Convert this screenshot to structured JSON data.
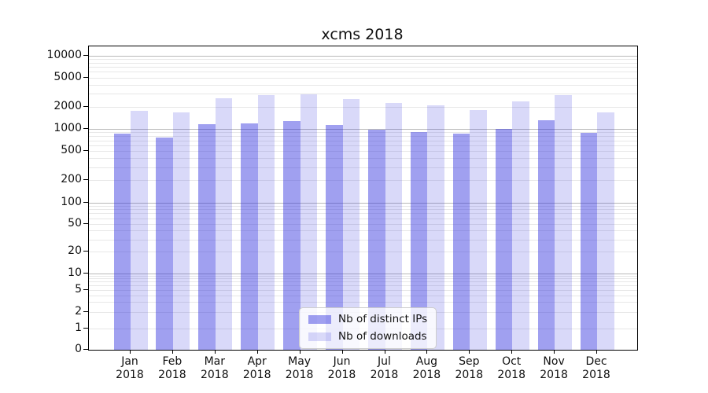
{
  "figure_title": "xcms 2018",
  "chart_data": {
    "type": "bar",
    "title": "xcms 2018",
    "categories": [
      "Jan",
      "Feb",
      "Mar",
      "Apr",
      "May",
      "Jun",
      "Jul",
      "Aug",
      "Sep",
      "Oct",
      "Nov",
      "Dec"
    ],
    "x_year": "2018",
    "series": [
      {
        "name": "Nb of distinct IPs",
        "color": "#2c2cde",
        "alpha": 0.45,
        "values": [
          860,
          760,
          1160,
          1190,
          1280,
          1130,
          980,
          900,
          860,
          1010,
          1310,
          880
        ]
      },
      {
        "name": "Nb of downloads",
        "color": "#2c2cde",
        "alpha": 0.18,
        "values": [
          1780,
          1690,
          2620,
          2880,
          2960,
          2550,
          2250,
          2100,
          1820,
          2380,
          2900,
          1690
        ]
      }
    ],
    "yscale": "symlog",
    "ylim": [
      0,
      13000
    ],
    "y_tick_labels": [
      "0",
      "1",
      "2",
      "5",
      "10",
      "20",
      "50",
      "100",
      "200",
      "500",
      "1000",
      "2000",
      "5000",
      "10000"
    ],
    "grid": true,
    "legend_position": "lower center"
  },
  "colors": {
    "bar_dark_apparent": "#a0a0f0",
    "bar_light_apparent": "#d9d9f9",
    "grid_major": "#b9b9b9",
    "grid_minor": "#e7e7e7",
    "spine": "#000000",
    "text": "#111111"
  }
}
